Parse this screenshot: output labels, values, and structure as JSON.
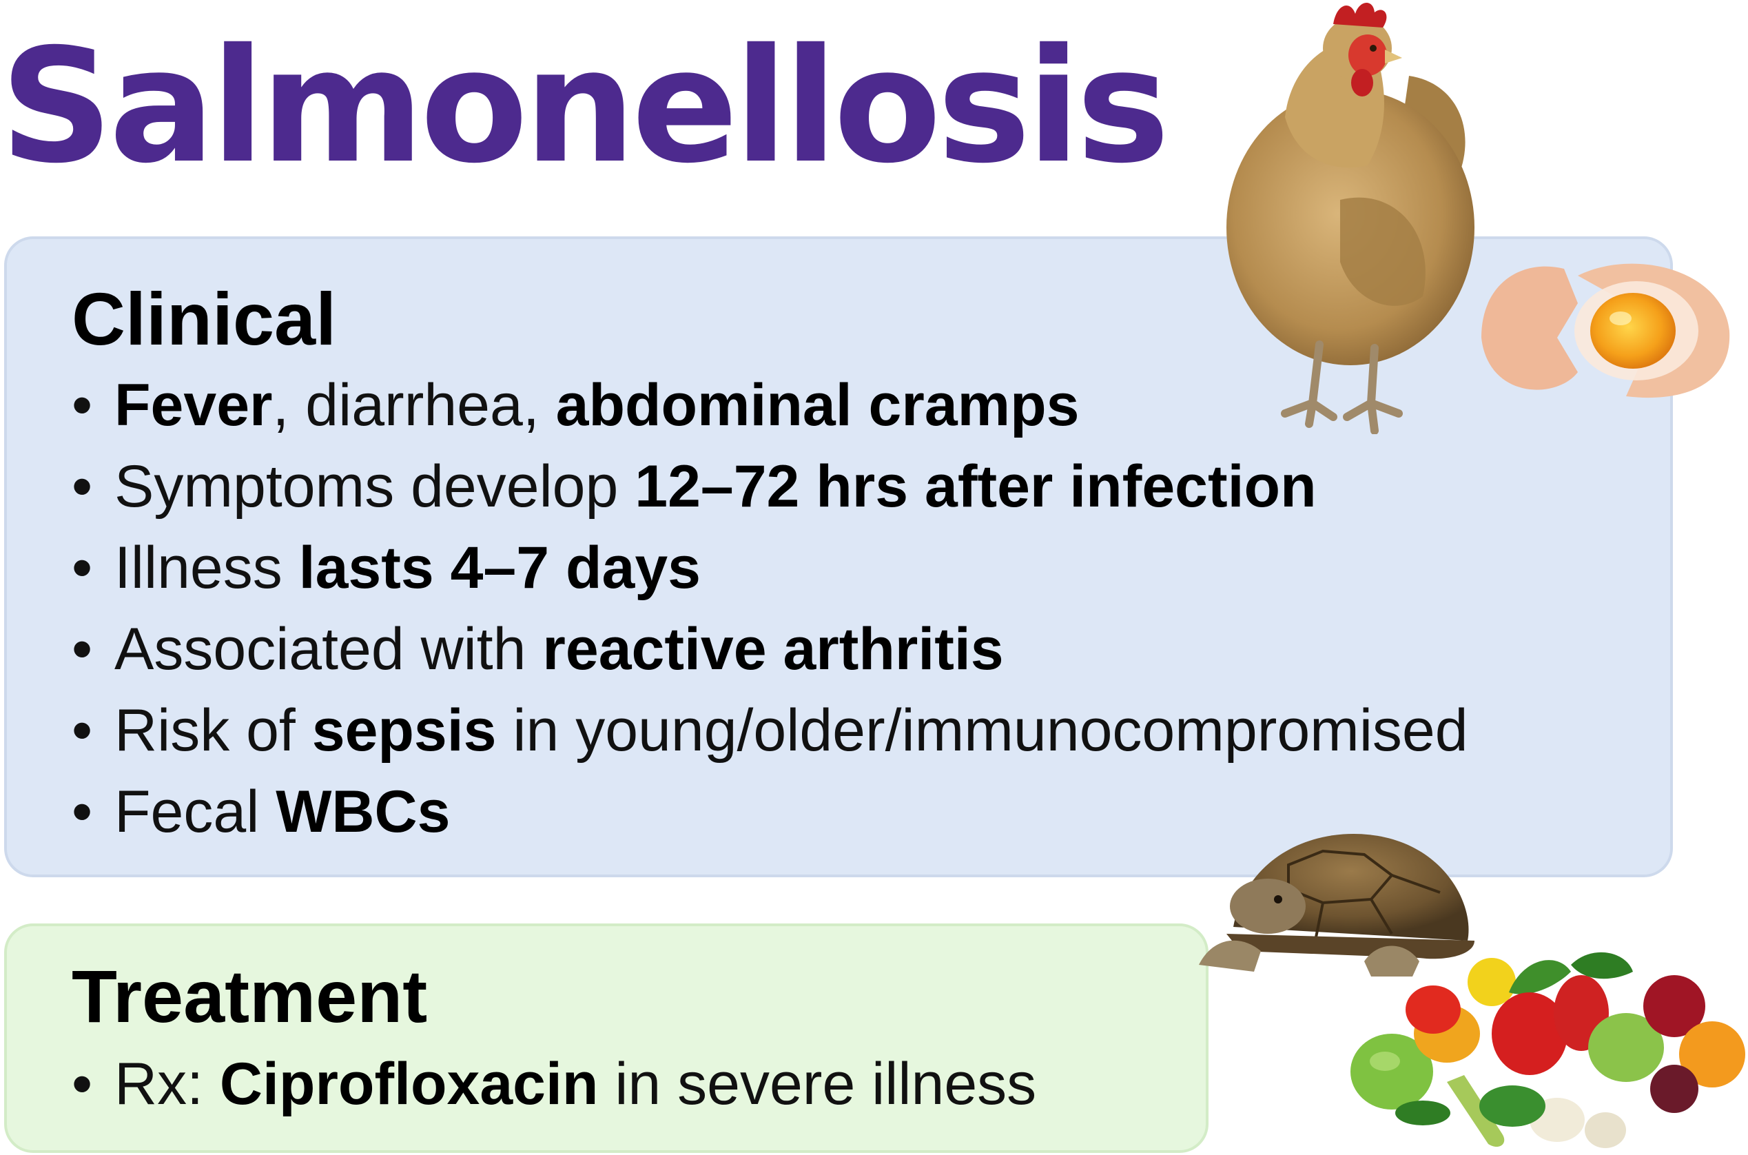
{
  "title": "Salmonellosis",
  "clinical": {
    "heading": "Clinical",
    "items": [
      {
        "segments": [
          {
            "text": "Fever",
            "bold": true
          },
          {
            "text": ", diarrhea, ",
            "bold": false
          },
          {
            "text": "abdominal cramps",
            "bold": true
          }
        ]
      },
      {
        "segments": [
          {
            "text": "Symptoms develop ",
            "bold": false
          },
          {
            "text": "12–72 hrs after infection",
            "bold": true
          }
        ]
      },
      {
        "segments": [
          {
            "text": "Illness ",
            "bold": false
          },
          {
            "text": "lasts 4–7 days",
            "bold": true
          }
        ]
      },
      {
        "segments": [
          {
            "text": "Associated with ",
            "bold": false
          },
          {
            "text": "reactive arthritis",
            "bold": true
          }
        ]
      },
      {
        "segments": [
          {
            "text": "Risk of ",
            "bold": false
          },
          {
            "text": "sepsis",
            "bold": true
          },
          {
            "text": " in young/older/immunocompromised",
            "bold": false
          }
        ]
      },
      {
        "segments": [
          {
            "text": "Fecal ",
            "bold": false
          },
          {
            "text": "WBCs",
            "bold": true
          }
        ]
      }
    ]
  },
  "treatment": {
    "heading": "Treatment",
    "items": [
      {
        "segments": [
          {
            "text": "Rx: ",
            "bold": false
          },
          {
            "text": "Ciprofloxacin",
            "bold": true
          },
          {
            "text": " in severe illness",
            "bold": false
          }
        ]
      }
    ]
  },
  "images": {
    "chicken": "chicken-image",
    "egg": "cracked-egg-image",
    "turtle": "tortoise-image",
    "vegetables": "vegetables-image"
  },
  "colors": {
    "title": "#4d2a8e",
    "clinical_panel": "#dde7f6",
    "treatment_panel": "#e6f7de"
  }
}
